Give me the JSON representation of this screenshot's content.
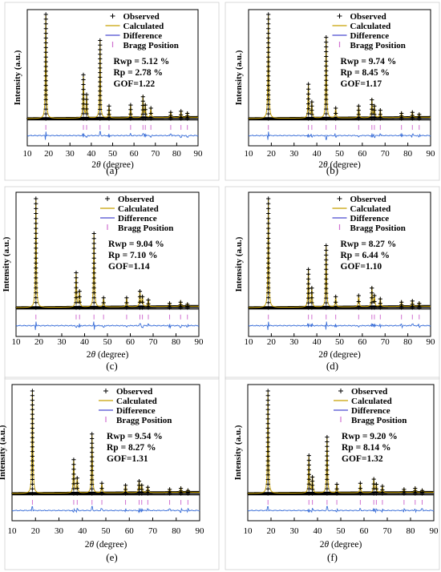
{
  "figure": {
    "common": {
      "xlabel_prefix": "2",
      "xlabel_theta": "θ",
      "xlabel_suffix": " (degree)",
      "ylabel": "Intensity (a.u.)",
      "xticks": [
        10,
        20,
        30,
        40,
        50,
        60,
        70,
        80,
        90
      ],
      "xlim": [
        10,
        90
      ],
      "legend_labels": [
        "Observed",
        "Calculated",
        "Difference",
        "Bragg Position"
      ],
      "colors": {
        "observed": "#000000",
        "calculated": "#c8a000",
        "difference_line": "#3b6fd8",
        "difference_legend": "#4a4ad0",
        "bragg_ticks": "#d070d0",
        "baseline": "#4a8fd8"
      }
    }
  },
  "chart_data": [
    {
      "type": "line",
      "panel_label": "(a)",
      "stats": [
        "Rwp = 5.12 %",
        "Rp = 2.78 %",
        "GOF=1.22"
      ],
      "peaks": [
        {
          "two_theta": 18.7,
          "rel_intensity": 1.0
        },
        {
          "two_theta": 36.3,
          "rel_intensity": 0.42
        },
        {
          "two_theta": 37.8,
          "rel_intensity": 0.23
        },
        {
          "two_theta": 44.1,
          "rel_intensity": 0.75
        },
        {
          "two_theta": 48.3,
          "rel_intensity": 0.12
        },
        {
          "two_theta": 58.4,
          "rel_intensity": 0.13
        },
        {
          "two_theta": 64.2,
          "rel_intensity": 0.21
        },
        {
          "two_theta": 65.3,
          "rel_intensity": 0.13
        },
        {
          "two_theta": 67.9,
          "rel_intensity": 0.1
        },
        {
          "two_theta": 77.2,
          "rel_intensity": 0.06
        },
        {
          "two_theta": 82.0,
          "rel_intensity": 0.07
        },
        {
          "two_theta": 85.0,
          "rel_intensity": 0.05
        }
      ],
      "bragg_positions": [
        18.7,
        36.3,
        37.8,
        44.1,
        48.3,
        58.4,
        64.2,
        65.3,
        67.9,
        77.2,
        82.0,
        85.0
      ]
    },
    {
      "type": "line",
      "panel_label": "(b)",
      "stats": [
        "Rwp = 9.74 %",
        "Rp = 8.45 %",
        "GOF=1.17"
      ],
      "peaks": [
        {
          "two_theta": 18.7,
          "rel_intensity": 1.0
        },
        {
          "two_theta": 36.3,
          "rel_intensity": 0.33
        },
        {
          "two_theta": 37.8,
          "rel_intensity": 0.16
        },
        {
          "two_theta": 44.1,
          "rel_intensity": 0.78
        },
        {
          "two_theta": 48.3,
          "rel_intensity": 0.1
        },
        {
          "two_theta": 58.4,
          "rel_intensity": 0.12
        },
        {
          "two_theta": 64.2,
          "rel_intensity": 0.18
        },
        {
          "two_theta": 65.3,
          "rel_intensity": 0.12
        },
        {
          "two_theta": 67.9,
          "rel_intensity": 0.08
        },
        {
          "two_theta": 77.2,
          "rel_intensity": 0.05
        },
        {
          "two_theta": 82.0,
          "rel_intensity": 0.06
        },
        {
          "two_theta": 85.0,
          "rel_intensity": 0.04
        }
      ],
      "bragg_positions": [
        18.7,
        36.3,
        37.8,
        44.1,
        48.3,
        58.4,
        64.2,
        65.3,
        67.9,
        77.2,
        82.0,
        85.0
      ]
    },
    {
      "type": "line",
      "panel_label": "(c)",
      "stats": [
        "Rwp = 9.04 %",
        "Rp = 7.10 %",
        "GOF=1.14"
      ],
      "peaks": [
        {
          "two_theta": 18.7,
          "rel_intensity": 1.0
        },
        {
          "two_theta": 36.3,
          "rel_intensity": 0.32
        },
        {
          "two_theta": 37.8,
          "rel_intensity": 0.15
        },
        {
          "two_theta": 44.1,
          "rel_intensity": 0.68
        },
        {
          "two_theta": 48.3,
          "rel_intensity": 0.09
        },
        {
          "two_theta": 58.4,
          "rel_intensity": 0.09
        },
        {
          "two_theta": 64.2,
          "rel_intensity": 0.15
        },
        {
          "two_theta": 65.3,
          "rel_intensity": 0.1
        },
        {
          "two_theta": 67.9,
          "rel_intensity": 0.07
        },
        {
          "two_theta": 77.2,
          "rel_intensity": 0.04
        },
        {
          "two_theta": 82.0,
          "rel_intensity": 0.05
        },
        {
          "two_theta": 85.0,
          "rel_intensity": 0.03
        }
      ],
      "bragg_positions": [
        18.7,
        36.3,
        37.8,
        44.1,
        48.3,
        58.4,
        64.2,
        65.3,
        67.9,
        77.2,
        82.0,
        85.0
      ]
    },
    {
      "type": "line",
      "panel_label": "(d)",
      "stats": [
        "Rwp = 8.27 %",
        "Rp = 6.44 %",
        "GOF=1.10"
      ],
      "peaks": [
        {
          "two_theta": 18.7,
          "rel_intensity": 1.0
        },
        {
          "two_theta": 36.3,
          "rel_intensity": 0.35
        },
        {
          "two_theta": 37.8,
          "rel_intensity": 0.18
        },
        {
          "two_theta": 44.1,
          "rel_intensity": 0.57
        },
        {
          "two_theta": 48.3,
          "rel_intensity": 0.1
        },
        {
          "two_theta": 58.4,
          "rel_intensity": 0.11
        },
        {
          "two_theta": 64.2,
          "rel_intensity": 0.18
        },
        {
          "two_theta": 65.3,
          "rel_intensity": 0.11
        },
        {
          "two_theta": 67.9,
          "rel_intensity": 0.08
        },
        {
          "two_theta": 77.2,
          "rel_intensity": 0.05
        },
        {
          "two_theta": 82.0,
          "rel_intensity": 0.06
        },
        {
          "two_theta": 85.0,
          "rel_intensity": 0.04
        }
      ],
      "bragg_positions": [
        18.7,
        36.3,
        37.8,
        44.1,
        48.3,
        58.4,
        64.2,
        65.3,
        67.9,
        77.2,
        82.0,
        85.0
      ]
    },
    {
      "type": "line",
      "panel_label": "(e)",
      "stats": [
        "Rwp = 9.54 %",
        "Rp = 8.27 %",
        "GOF=1.31"
      ],
      "peaks": [
        {
          "two_theta": 18.7,
          "rel_intensity": 1.0
        },
        {
          "two_theta": 36.3,
          "rel_intensity": 0.33
        },
        {
          "two_theta": 37.8,
          "rel_intensity": 0.15
        },
        {
          "two_theta": 44.1,
          "rel_intensity": 0.58
        },
        {
          "two_theta": 48.3,
          "rel_intensity": 0.1
        },
        {
          "two_theta": 58.4,
          "rel_intensity": 0.08
        },
        {
          "two_theta": 64.2,
          "rel_intensity": 0.12
        },
        {
          "two_theta": 65.3,
          "rel_intensity": 0.08
        },
        {
          "two_theta": 67.9,
          "rel_intensity": 0.06
        },
        {
          "two_theta": 77.2,
          "rel_intensity": 0.04
        },
        {
          "two_theta": 82.0,
          "rel_intensity": 0.05
        },
        {
          "two_theta": 85.0,
          "rel_intensity": 0.03
        }
      ],
      "bragg_positions": [
        18.7,
        36.3,
        37.8,
        44.1,
        48.3,
        58.4,
        64.2,
        65.3,
        67.9,
        77.2,
        82.0,
        85.0
      ]
    },
    {
      "type": "line",
      "panel_label": "(f)",
      "stats": [
        "Rwp = 9.20 %",
        "Rp = 8.14 %",
        "GOF=1.32"
      ],
      "peaks": [
        {
          "two_theta": 18.7,
          "rel_intensity": 1.0
        },
        {
          "two_theta": 36.3,
          "rel_intensity": 0.37
        },
        {
          "two_theta": 37.8,
          "rel_intensity": 0.16
        },
        {
          "two_theta": 44.1,
          "rel_intensity": 0.55
        },
        {
          "two_theta": 48.3,
          "rel_intensity": 0.09
        },
        {
          "two_theta": 58.4,
          "rel_intensity": 0.1
        },
        {
          "two_theta": 64.2,
          "rel_intensity": 0.14
        },
        {
          "two_theta": 65.3,
          "rel_intensity": 0.09
        },
        {
          "two_theta": 67.9,
          "rel_intensity": 0.07
        },
        {
          "two_theta": 77.2,
          "rel_intensity": 0.04
        },
        {
          "two_theta": 82.0,
          "rel_intensity": 0.05
        },
        {
          "two_theta": 85.0,
          "rel_intensity": 0.03
        }
      ],
      "bragg_positions": [
        18.7,
        36.3,
        37.8,
        44.1,
        48.3,
        58.4,
        64.2,
        65.3,
        67.9,
        77.2,
        82.0,
        85.0
      ]
    }
  ]
}
